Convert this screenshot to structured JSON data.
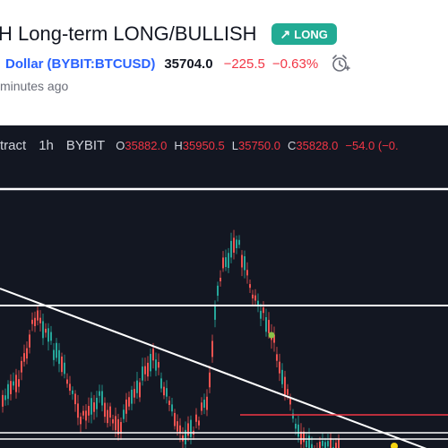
{
  "header": {
    "title": "H Long-term LONG/BULLISH",
    "badge_label": "LONG",
    "badge_icon": "arrow-up-right-icon",
    "symbol_name": "Dollar",
    "symbol_code": "(BYBIT:BTCUSD)",
    "price": "35704.0",
    "change": "−225.5",
    "change_pct": "−0.63%",
    "time": "minutes ago"
  },
  "legend": {
    "instrument": "tract",
    "interval": "1h",
    "exchange": "BYBIT",
    "o_label": "O",
    "o_value": "35882.0",
    "h_label": "H",
    "h_value": "35950.5",
    "l_label": "L",
    "l_value": "35750.0",
    "c_label": "C",
    "c_value": "35828.0",
    "change": "−54.0 (−0.",
    "colors": {
      "up": "#26a69a",
      "down": "#ef5350",
      "background": "#131722"
    }
  }
}
